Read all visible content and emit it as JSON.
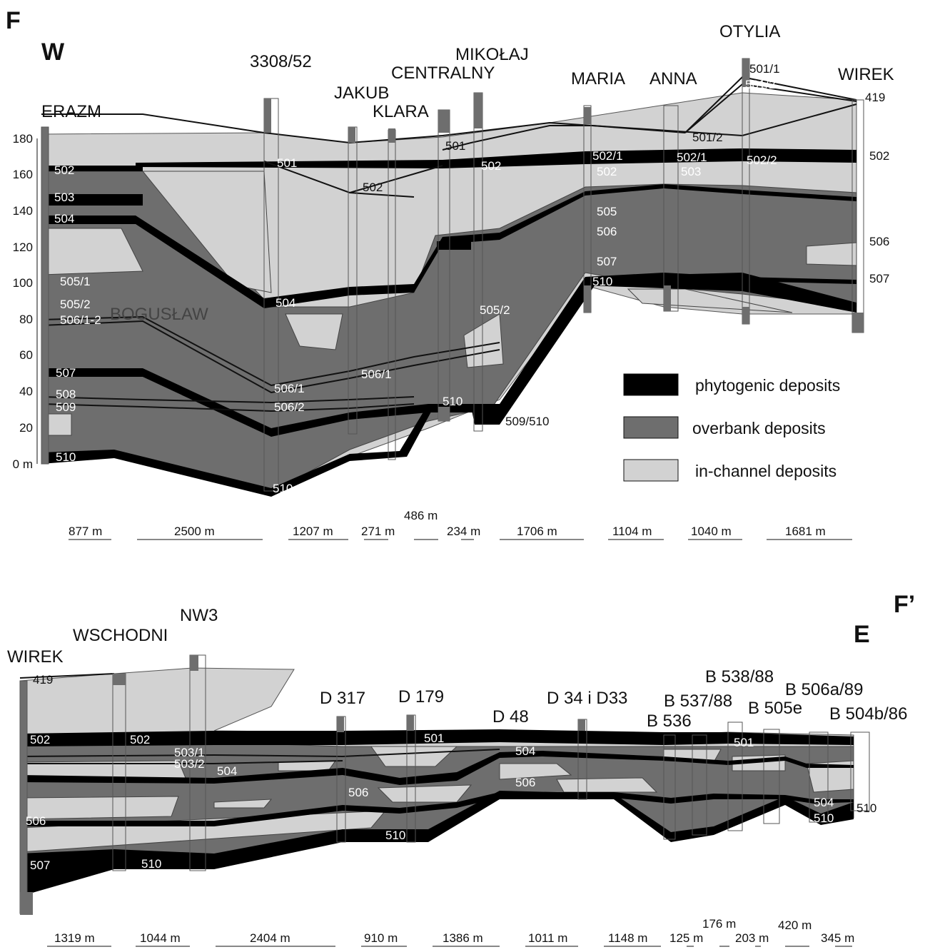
{
  "panel_top": {
    "letter": "F",
    "direction": "W",
    "wells": [
      "ERAZM",
      "3308/52",
      "JAKUB",
      "KLARA",
      "CENTRALNY",
      "MIKOŁAJ",
      "MARIA",
      "ANNA",
      "OTYLIA",
      "WIREK"
    ],
    "inline_name": "BOGUSŁAW",
    "y_ticks": [
      "180",
      "160",
      "140",
      "120",
      "100",
      "80",
      "60",
      "40",
      "20",
      "0 m"
    ],
    "horizons": [
      "501",
      "501",
      "501/1",
      "501/2",
      "501/2",
      "419",
      "502",
      "502",
      "502",
      "502/1",
      "502/1",
      "502/2",
      "502",
      "502",
      "503",
      "503",
      "504",
      "504",
      "505",
      "505/1",
      "505/2",
      "505/2",
      "506",
      "506",
      "506/1-2",
      "506/1",
      "506/1",
      "506/2",
      "507",
      "507",
      "507",
      "508",
      "509",
      "510",
      "510",
      "510",
      "510",
      "509/510"
    ],
    "distances": [
      "877 m",
      "2500 m",
      "1207 m",
      "271 m",
      "486 m",
      "234 m",
      "1706 m",
      "1104 m",
      "1040 m",
      "1681 m"
    ]
  },
  "panel_bottom": {
    "letter": "F’",
    "direction": "E",
    "wells": [
      "WIREK",
      "WSCHODNI",
      "NW3",
      "D 317",
      "D 179",
      "D 48",
      "D 34 i D33",
      "B 536",
      "B 537/88",
      "B 538/88",
      "B 505e",
      "B 506a/89",
      "B 504b/86"
    ],
    "horizons": [
      "419",
      "502",
      "502",
      "501",
      "501",
      "503/1",
      "503/2",
      "504",
      "504",
      "504",
      "506",
      "506",
      "506",
      "507",
      "510",
      "510",
      "510",
      "510"
    ],
    "distances": [
      "1319 m",
      "1044 m",
      "2404 m",
      "910 m",
      "1386 m",
      "1011 m",
      "1148 m",
      "125 m",
      "176 m",
      "203 m",
      "420 m",
      "345 m"
    ]
  },
  "legend": [
    {
      "label": "phytogenic deposits",
      "color": "#000000"
    },
    {
      "label": "overbank deposits",
      "color": "#6e6e6e"
    },
    {
      "label": "in-channel deposits",
      "color": "#d2d2d2"
    }
  ],
  "colors": {
    "phytogenic": "#000000",
    "overbank": "#6e6e6e",
    "in_channel": "#d2d2d2"
  }
}
